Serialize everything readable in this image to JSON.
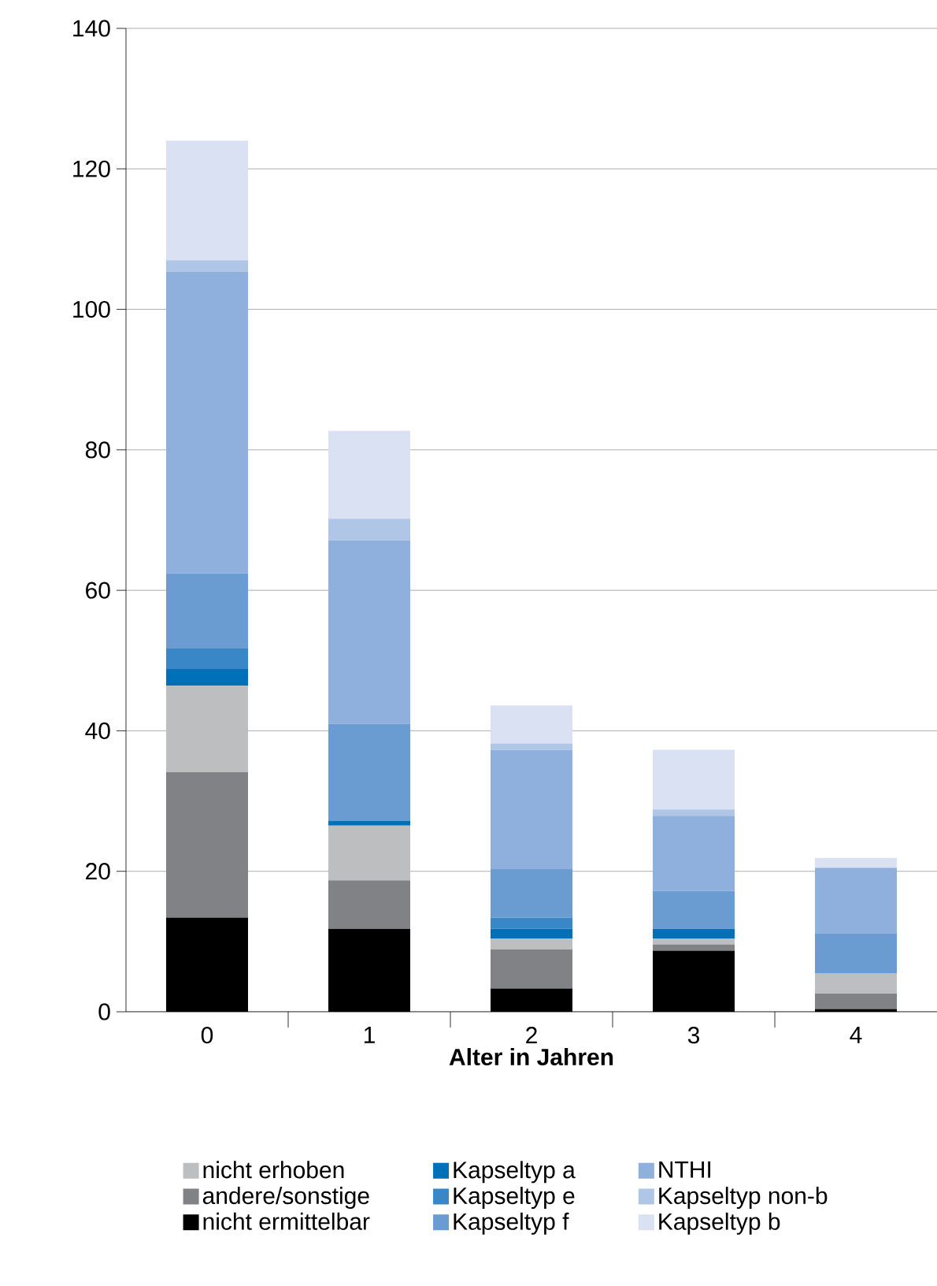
{
  "chart_data": {
    "type": "bar",
    "stacked": true,
    "xlabel": "**Alter in Jahren**",
    "categories": [
      "0",
      "1",
      "2",
      "3",
      "4"
    ],
    "series": [
      {
        "name": "nicht ermittelbar",
        "color": "#000000",
        "values": [
          13.4,
          11.8,
          3.3,
          8.7,
          0.4
        ]
      },
      {
        "name": "andere/sonstige",
        "color": "#818286",
        "values": [
          20.7,
          6.9,
          5.6,
          0.9,
          2.2
        ]
      },
      {
        "name": "nicht erhoben",
        "color": "#bdbebf",
        "values": [
          12.3,
          7.8,
          1.5,
          0.8,
          2.9
        ]
      },
      {
        "name": "Kapseltyp a",
        "color": "#0070b8",
        "values": [
          2.4,
          0.7,
          1.4,
          1.4,
          0
        ]
      },
      {
        "name": "Kapseltyp e",
        "color": "#3a87c8",
        "values": [
          2.9,
          0,
          1.6,
          0,
          0
        ]
      },
      {
        "name": "Kapseltyp f",
        "color": "#6a9bd1",
        "values": [
          10.7,
          13.8,
          6.9,
          5.4,
          5.6
        ]
      },
      {
        "name": "NTHI",
        "color": "#8fb0dc",
        "values": [
          43.0,
          26.1,
          17.0,
          10.7,
          9.4
        ]
      },
      {
        "name": "Kapseltyp non-b",
        "color": "#b0c6e6",
        "values": [
          1.6,
          3.1,
          0.9,
          0.9,
          0
        ]
      },
      {
        "name": "Kapseltyp b",
        "color": "#d9e1f3",
        "values": [
          17.0,
          12.5,
          5.4,
          8.5,
          1.4
        ]
      }
    ],
    "ylim": [
      0,
      140
    ],
    "yticks": [
      0,
      20,
      40,
      60,
      80,
      100,
      120,
      140
    ],
    "grid": "y",
    "legend": "bottom"
  }
}
